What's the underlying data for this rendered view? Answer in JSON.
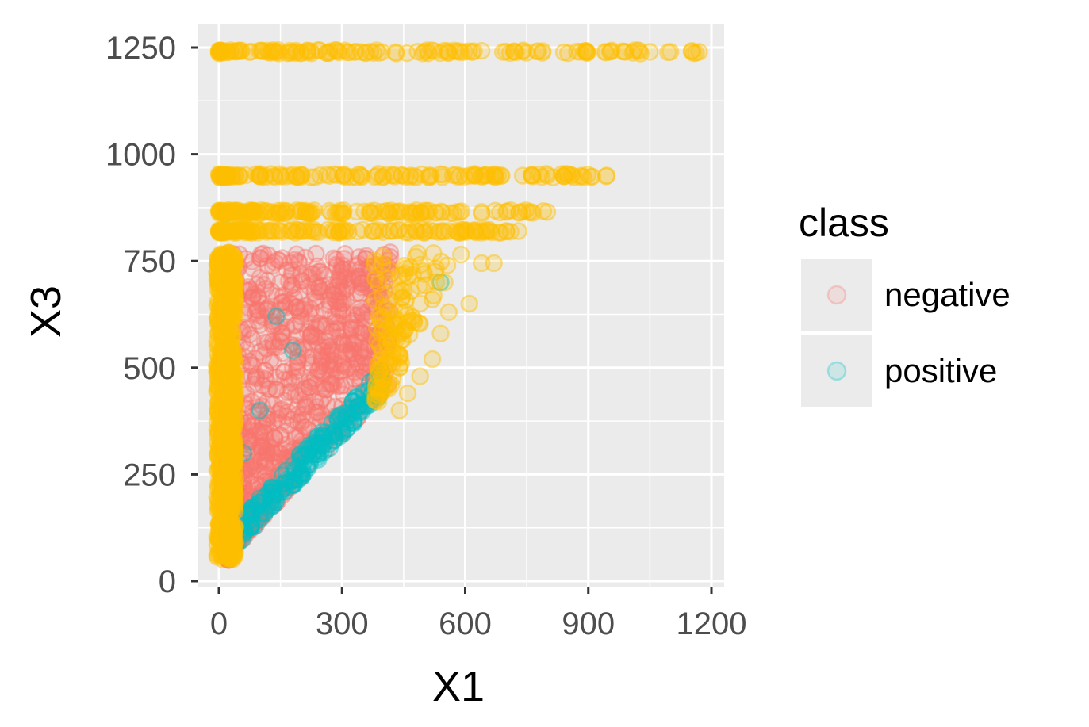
{
  "chart_data": {
    "type": "scatter",
    "title": "",
    "xlabel": "X1",
    "ylabel": "X3",
    "xlim": [
      -40,
      1220
    ],
    "ylim": [
      -5,
      1300
    ],
    "x_ticks": [
      0,
      300,
      600,
      900,
      1200
    ],
    "y_ticks": [
      0,
      250,
      500,
      750,
      1000,
      1250
    ],
    "x_tick_labels": [
      "0",
      "300",
      "600",
      "900",
      "1200"
    ],
    "y_tick_labels": [
      "0",
      "250",
      "500",
      "750",
      "1000",
      "1250"
    ],
    "grid": true,
    "panel_background": "#ebebeb",
    "legend": {
      "title": "class",
      "placement": "right",
      "entries": [
        {
          "label": "negative",
          "color": "#f8766d"
        },
        {
          "label": "positive",
          "color": "#00bfc4"
        }
      ]
    },
    "series": [
      {
        "name": "negative",
        "color": "#f8766d",
        "description": "dense triangular region bounded below by X3 ≈ X1 + 40",
        "region": {
          "x_range": [
            20,
            420
          ],
          "y_range": [
            50,
            770
          ]
        },
        "points": [
          [
            150,
            700
          ],
          [
            200,
            720
          ],
          [
            250,
            680
          ],
          [
            300,
            740
          ],
          [
            350,
            700
          ],
          [
            400,
            720
          ],
          [
            100,
            600
          ],
          [
            150,
            560
          ],
          [
            200,
            620
          ],
          [
            250,
            600
          ],
          [
            300,
            560
          ],
          [
            350,
            580
          ],
          [
            80,
            480
          ],
          [
            120,
            450
          ],
          [
            180,
            500
          ],
          [
            220,
            470
          ],
          [
            280,
            510
          ],
          [
            330,
            490
          ],
          [
            380,
            500
          ],
          [
            60,
            380
          ],
          [
            100,
            350
          ],
          [
            150,
            400
          ],
          [
            200,
            370
          ],
          [
            250,
            390
          ],
          [
            300,
            410
          ],
          [
            50,
            280
          ],
          [
            90,
            260
          ],
          [
            130,
            300
          ],
          [
            180,
            280
          ],
          [
            220,
            300
          ],
          [
            40,
            180
          ],
          [
            70,
            160
          ],
          [
            110,
            200
          ],
          [
            150,
            220
          ],
          [
            60,
            100
          ],
          [
            90,
            130
          ],
          [
            230,
            720
          ],
          [
            310,
            660
          ],
          [
            160,
            640
          ],
          [
            140,
            450
          ],
          [
            260,
            450
          ],
          [
            200,
            300
          ]
        ]
      },
      {
        "name": "positive",
        "color": "#00bfc4",
        "description": "scattered along the diagonal lower boundary and near X1 ≈ 0",
        "points": [
          [
            40,
            90
          ],
          [
            80,
            130
          ],
          [
            120,
            170
          ],
          [
            160,
            210
          ],
          [
            200,
            250
          ],
          [
            240,
            290
          ],
          [
            280,
            330
          ],
          [
            320,
            370
          ],
          [
            360,
            410
          ],
          [
            390,
            440
          ],
          [
            20,
            820
          ],
          [
            15,
            860
          ],
          [
            140,
            620
          ],
          [
            180,
            540
          ],
          [
            100,
            400
          ],
          [
            60,
            300
          ],
          [
            540,
            700
          ],
          [
            20,
            950
          ]
        ]
      },
      {
        "name": "",
        "color": "#ffbf00",
        "description": "bands at X3 ≈ 1240, 950, 865, 820 and a dense column near X1 ≈ 0–50",
        "bands": [
          {
            "y": 1240,
            "x_range": [
              0,
              1170
            ]
          },
          {
            "y": 950,
            "x_range": [
              0,
              945
            ]
          },
          {
            "y": 865,
            "x_range": [
              0,
              800
            ]
          },
          {
            "y": 820,
            "x_range": [
              0,
              730
            ]
          }
        ],
        "points": [
          [
            1170,
            1240
          ],
          [
            1100,
            1240
          ],
          [
            1050,
            1240
          ],
          [
            990,
            1240
          ],
          [
            940,
            1240
          ],
          [
            880,
            1240
          ],
          [
            945,
            950
          ],
          [
            860,
            950
          ],
          [
            800,
            950
          ],
          [
            740,
            950
          ],
          [
            680,
            950
          ],
          [
            620,
            950
          ],
          [
            800,
            865
          ],
          [
            760,
            865
          ],
          [
            700,
            865
          ],
          [
            640,
            865
          ],
          [
            580,
            865
          ],
          [
            730,
            820
          ],
          [
            700,
            820
          ],
          [
            660,
            820
          ],
          [
            600,
            820
          ],
          [
            560,
            820
          ],
          [
            670,
            745
          ],
          [
            640,
            745
          ],
          [
            590,
            765
          ],
          [
            550,
            700
          ],
          [
            610,
            650
          ],
          [
            560,
            630
          ],
          [
            540,
            580
          ],
          [
            520,
            520
          ],
          [
            490,
            480
          ],
          [
            460,
            440
          ],
          [
            440,
            400
          ],
          [
            480,
            760
          ],
          [
            500,
            720
          ],
          [
            450,
            680
          ],
          [
            520,
            660
          ],
          [
            470,
            610
          ],
          [
            420,
            560
          ],
          [
            440,
            500
          ],
          [
            420,
            460
          ],
          [
            400,
            760
          ],
          [
            380,
            740
          ]
        ]
      }
    ]
  }
}
